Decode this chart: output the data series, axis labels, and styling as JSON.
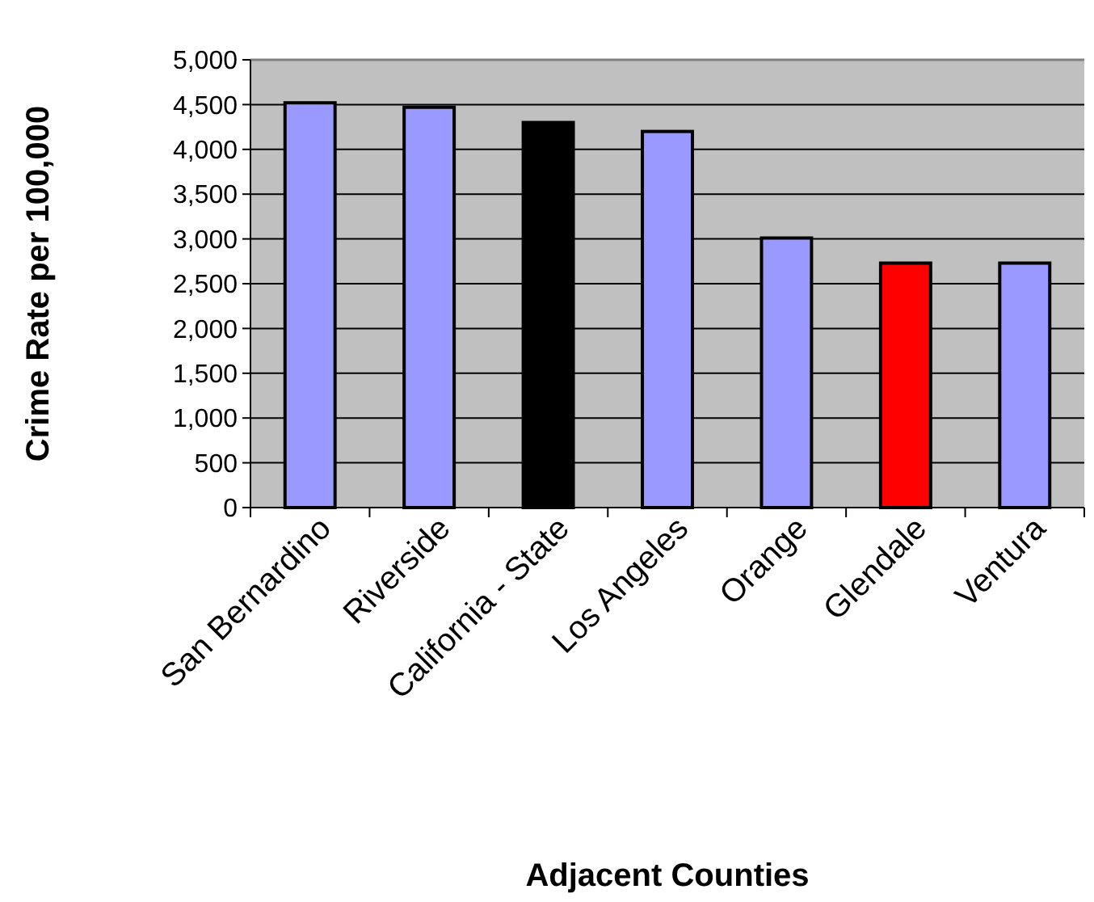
{
  "chart_data": {
    "type": "bar",
    "xlabel": "Adjacent Counties",
    "ylabel": "Crime Rate per 100,000",
    "categories": [
      "San Bernardino",
      "Riverside",
      "California - State",
      "Los Angeles",
      "Orange",
      "Glendale",
      "Ventura"
    ],
    "values": [
      4520,
      4470,
      4300,
      4200,
      3010,
      2730,
      2730
    ],
    "colors": [
      "#9999ff",
      "#9999ff",
      "#000000",
      "#9999ff",
      "#9999ff",
      "#ff0000",
      "#9999ff"
    ],
    "ylim": [
      0,
      5000
    ],
    "yticks": [
      {
        "value": 0,
        "label": "0"
      },
      {
        "value": 500,
        "label": "500"
      },
      {
        "value": 1000,
        "label": "1,000"
      },
      {
        "value": 1500,
        "label": "1,500"
      },
      {
        "value": 2000,
        "label": "2,000"
      },
      {
        "value": 2500,
        "label": "2,500"
      },
      {
        "value": 3000,
        "label": "3,000"
      },
      {
        "value": 3500,
        "label": "3,500"
      },
      {
        "value": 4000,
        "label": "4,000"
      },
      {
        "value": 4500,
        "label": "4,500"
      },
      {
        "value": 5000,
        "label": "5,000"
      }
    ],
    "grid": "y"
  }
}
